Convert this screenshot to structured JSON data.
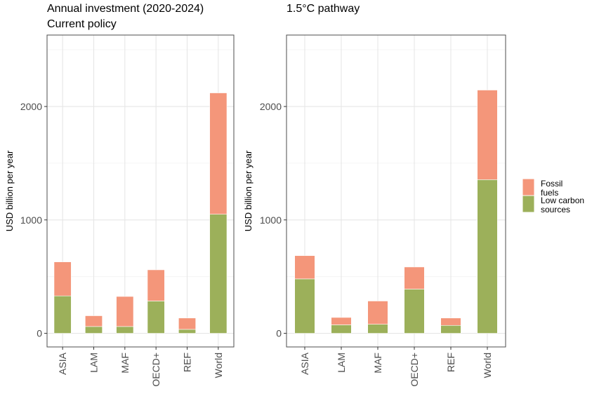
{
  "chart_data": [
    {
      "type": "bar",
      "stacked": true,
      "title": [
        "Annual investment (2020-2024)",
        "Current policy"
      ],
      "xlabel": "",
      "ylabel": "USD billion per year",
      "categories": [
        "ASIA",
        "LAM",
        "MAF",
        "OECD+",
        "REF",
        "World"
      ],
      "ylim": [
        -120,
        2630
      ],
      "yticks": [
        0,
        1000,
        2000
      ],
      "ytick_labels": [
        "0",
        "1000",
        "2000"
      ],
      "grid": true,
      "series": [
        {
          "name": "Low carbon sources",
          "values": [
            330,
            60,
            60,
            285,
            35,
            1050
          ]
        },
        {
          "name": "Fossil fuels",
          "values": [
            300,
            95,
            265,
            275,
            100,
            1070
          ]
        }
      ]
    },
    {
      "type": "bar",
      "stacked": true,
      "title": [
        "1.5°C pathway"
      ],
      "xlabel": "",
      "ylabel": "USD billion per year",
      "categories": [
        "ASIA",
        "LAM",
        "MAF",
        "OECD+",
        "REF",
        "World"
      ],
      "ylim": [
        -120,
        2630
      ],
      "yticks": [
        0,
        1000,
        2000
      ],
      "ytick_labels": [
        "0",
        "1000",
        "2000"
      ],
      "grid": true,
      "series": [
        {
          "name": "Low carbon sources",
          "values": [
            480,
            75,
            80,
            390,
            70,
            1355
          ]
        },
        {
          "name": "Fossil fuels",
          "values": [
            205,
            65,
            205,
            195,
            65,
            790
          ]
        }
      ]
    }
  ],
  "legend": {
    "position": "right",
    "items": [
      {
        "label_lines": [
          "Fossil",
          "fuels"
        ],
        "color": "#F4967A"
      },
      {
        "label_lines": [
          "Low carbon",
          "sources"
        ],
        "color": "#9CB05A"
      }
    ]
  },
  "colors": {
    "Low carbon sources": "#9CB05A",
    "Fossil fuels": "#F4967A",
    "panel_border": "#4d4d4d",
    "grid_major": "#e6e6e6",
    "grid_minor": "#f2f2f2"
  }
}
